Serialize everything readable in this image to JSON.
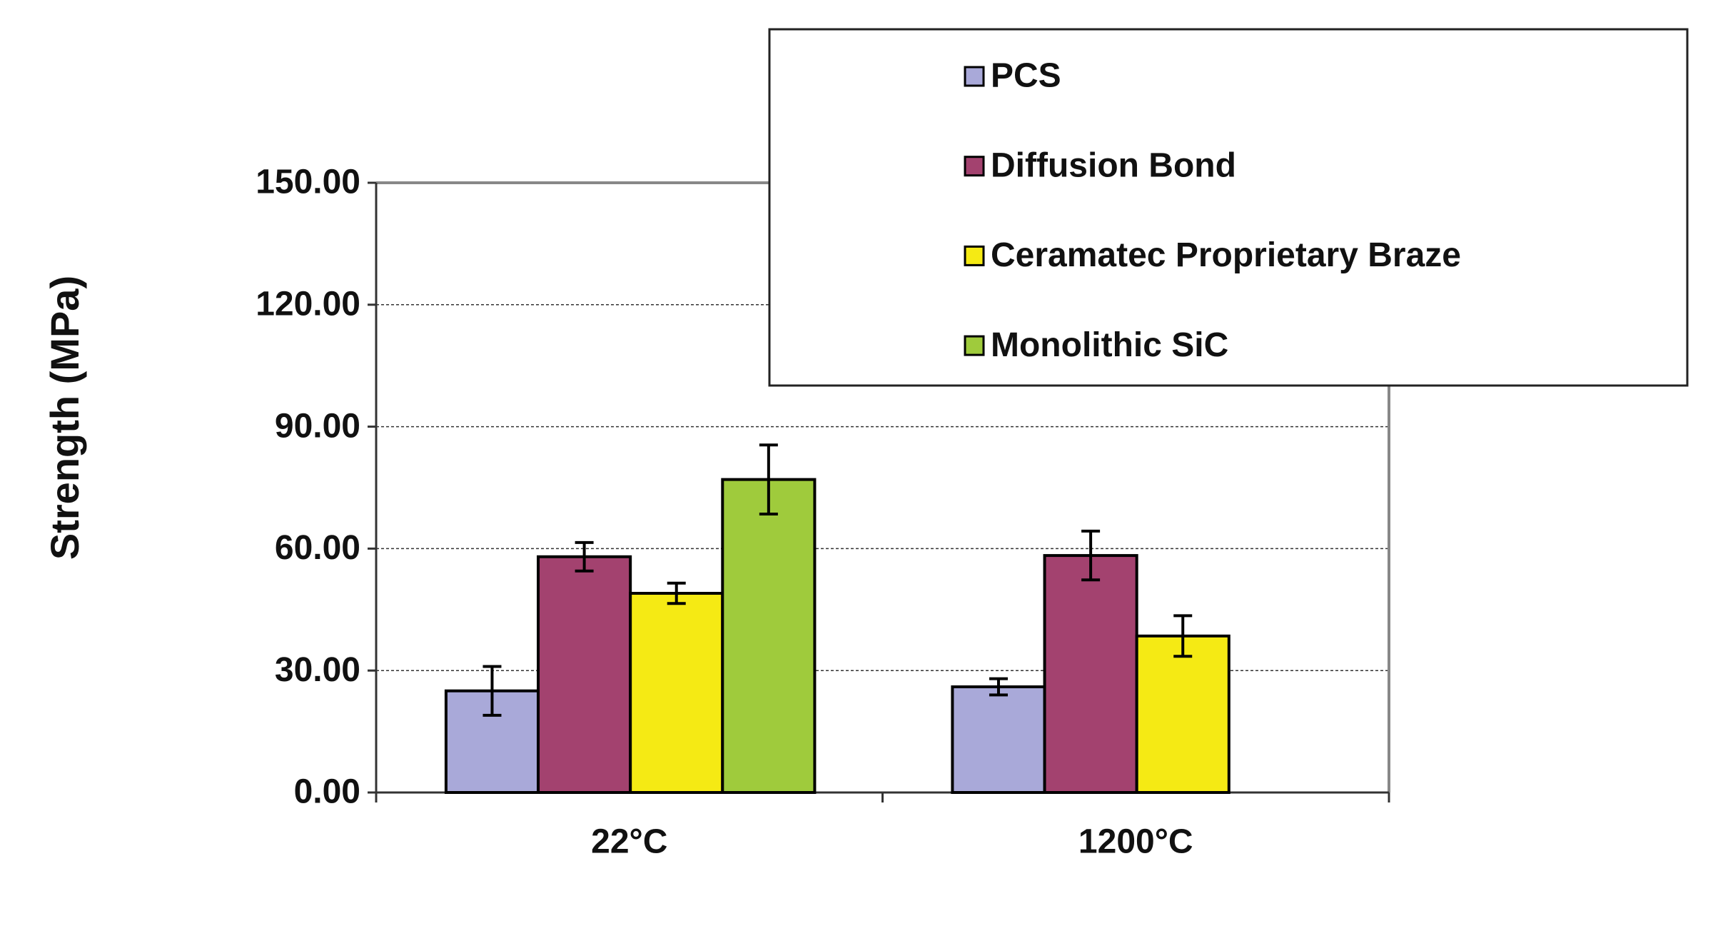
{
  "chart_data": {
    "type": "bar",
    "y_label": "Strength (MPa)",
    "categories": [
      "22°C",
      "1200°C"
    ],
    "series": [
      {
        "name": "PCS",
        "color": "#a9a9d9",
        "values": [
          25,
          26
        ],
        "errors": [
          6,
          2
        ]
      },
      {
        "name": "Diffusion Bond",
        "color": "#a3426f",
        "values": [
          58,
          58.3
        ],
        "errors": [
          3.5,
          6
        ]
      },
      {
        "name": "Ceramatec Proprietary Braze",
        "color": "#f5ea14",
        "values": [
          49,
          38.5
        ],
        "errors": [
          2.5,
          5
        ]
      },
      {
        "name": "Monolithic SiC",
        "color": "#9fcb3c",
        "values": [
          77,
          null
        ],
        "errors": [
          8.5,
          null
        ]
      }
    ],
    "ylim": [
      0,
      150
    ],
    "yticks": [
      {
        "value": 0,
        "label": "0.00"
      },
      {
        "value": 30,
        "label": "30.00"
      },
      {
        "value": 60,
        "label": "60.00"
      },
      {
        "value": 90,
        "label": "90.00"
      },
      {
        "value": 120,
        "label": "120.00"
      },
      {
        "value": 150,
        "label": "150.00"
      }
    ],
    "grid": true,
    "legend_position": "upper right"
  }
}
